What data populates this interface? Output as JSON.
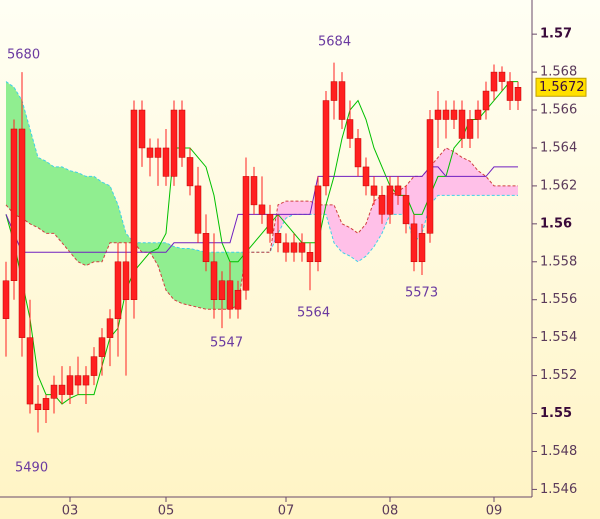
{
  "chart_data": {
    "type": "candlestick",
    "ylim": [
      1.5456,
      1.5718
    ],
    "yticks": [
      1.546,
      1.548,
      1.55,
      1.552,
      1.554,
      1.556,
      1.558,
      1.56,
      1.562,
      1.564,
      1.566,
      1.568,
      1.57
    ],
    "xlim": [
      -0.75,
      65.75
    ],
    "xticks": [
      {
        "value": 8,
        "label": "03"
      },
      {
        "value": 20,
        "label": "05"
      },
      {
        "value": 35,
        "label": "07"
      },
      {
        "value": 48,
        "label": "08"
      },
      {
        "value": 61,
        "label": "09"
      }
    ],
    "candle_color": "#ff2020",
    "last_price": 1.5672,
    "annotations": [
      "5680",
      "5684",
      "5490",
      "5547",
      "5564",
      "5573"
    ],
    "ohlc": [
      [
        1.555,
        1.558,
        1.553,
        1.557
      ],
      [
        1.557,
        1.5655,
        1.556,
        1.565
      ],
      [
        1.565,
        1.568,
        1.553,
        1.554
      ],
      [
        1.554,
        1.556,
        1.55,
        1.5505
      ],
      [
        1.5505,
        1.5515,
        1.549,
        1.5502
      ],
      [
        1.5502,
        1.551,
        1.5495,
        1.5508
      ],
      [
        1.5508,
        1.552,
        1.55,
        1.5515
      ],
      [
        1.5515,
        1.5525,
        1.5505,
        1.551
      ],
      [
        1.551,
        1.5525,
        1.5505,
        1.552
      ],
      [
        1.552,
        1.553,
        1.551,
        1.5515
      ],
      [
        1.5515,
        1.5525,
        1.5505,
        1.552
      ],
      [
        1.552,
        1.5535,
        1.5515,
        1.553
      ],
      [
        1.553,
        1.5545,
        1.552,
        1.554
      ],
      [
        1.554,
        1.5555,
        1.5525,
        1.555
      ],
      [
        1.555,
        1.559,
        1.553,
        1.558
      ],
      [
        1.558,
        1.559,
        1.552,
        1.556
      ],
      [
        1.556,
        1.5665,
        1.555,
        1.566
      ],
      [
        1.566,
        1.5665,
        1.563,
        1.564
      ],
      [
        1.564,
        1.5645,
        1.5625,
        1.5635
      ],
      [
        1.5635,
        1.5645,
        1.562,
        1.564
      ],
      [
        1.564,
        1.565,
        1.562,
        1.5625
      ],
      [
        1.5625,
        1.5665,
        1.562,
        1.566
      ],
      [
        1.566,
        1.5665,
        1.563,
        1.5635
      ],
      [
        1.5635,
        1.564,
        1.5615,
        1.562
      ],
      [
        1.562,
        1.563,
        1.559,
        1.5595
      ],
      [
        1.5595,
        1.5605,
        1.5575,
        1.558
      ],
      [
        1.558,
        1.5595,
        1.555,
        1.556
      ],
      [
        1.556,
        1.5575,
        1.5545,
        1.557
      ],
      [
        1.557,
        1.558,
        1.555,
        1.5555
      ],
      [
        1.5555,
        1.557,
        1.555,
        1.5565
      ],
      [
        1.5565,
        1.5635,
        1.556,
        1.5625
      ],
      [
        1.5625,
        1.563,
        1.5605,
        1.561
      ],
      [
        1.561,
        1.5625,
        1.56,
        1.5605
      ],
      [
        1.5605,
        1.561,
        1.559,
        1.5595
      ],
      [
        1.5595,
        1.5605,
        1.5585,
        1.559
      ],
      [
        1.559,
        1.5595,
        1.558,
        1.5585
      ],
      [
        1.5585,
        1.5595,
        1.558,
        1.559
      ],
      [
        1.559,
        1.5595,
        1.558,
        1.5585
      ],
      [
        1.5585,
        1.559,
        1.5565,
        1.558
      ],
      [
        1.558,
        1.5625,
        1.5575,
        1.562
      ],
      [
        1.562,
        1.567,
        1.5615,
        1.5665
      ],
      [
        1.5665,
        1.5685,
        1.5655,
        1.5675
      ],
      [
        1.5675,
        1.568,
        1.565,
        1.5655
      ],
      [
        1.5655,
        1.5665,
        1.564,
        1.5645
      ],
      [
        1.5645,
        1.565,
        1.5625,
        1.563
      ],
      [
        1.563,
        1.5635,
        1.5615,
        1.562
      ],
      [
        1.562,
        1.5625,
        1.561,
        1.5615
      ],
      [
        1.5615,
        1.562,
        1.56,
        1.5605
      ],
      [
        1.5605,
        1.5625,
        1.56,
        1.562
      ],
      [
        1.562,
        1.5625,
        1.561,
        1.5615
      ],
      [
        1.5615,
        1.562,
        1.5595,
        1.56
      ],
      [
        1.56,
        1.5605,
        1.5575,
        1.558
      ],
      [
        1.558,
        1.56,
        1.5573,
        1.5595
      ],
      [
        1.5595,
        1.566,
        1.559,
        1.5655
      ],
      [
        1.5655,
        1.567,
        1.564,
        1.566
      ],
      [
        1.566,
        1.5665,
        1.5645,
        1.5655
      ],
      [
        1.5655,
        1.5665,
        1.565,
        1.566
      ],
      [
        1.566,
        1.5665,
        1.564,
        1.5645
      ],
      [
        1.5645,
        1.566,
        1.564,
        1.5655
      ],
      [
        1.5655,
        1.5665,
        1.5645,
        1.566
      ],
      [
        1.566,
        1.5675,
        1.5655,
        1.567
      ],
      [
        1.567,
        1.5684,
        1.5665,
        1.568
      ],
      [
        1.568,
        1.5683,
        1.567,
        1.5675
      ],
      [
        1.5675,
        1.568,
        1.566,
        1.5665
      ],
      [
        1.5665,
        1.5675,
        1.566,
        1.5672
      ]
    ],
    "cloud": {
      "up_color": "#90ee90",
      "down_color": "#ffc0e8",
      "a_color": "#40d0e8",
      "b_color": "#d04040",
      "span_a": [
        1.5675,
        1.5672,
        1.5665,
        1.565,
        1.5635,
        1.5633,
        1.563,
        1.563,
        1.5628,
        1.5627,
        1.5625,
        1.5625,
        1.5622,
        1.562,
        1.561,
        1.5595,
        1.559,
        1.559,
        1.559,
        1.559,
        1.559,
        1.5588,
        1.5587,
        1.5587,
        1.5586,
        1.5585,
        1.5585,
        1.5585,
        1.5585,
        1.5585,
        1.5585,
        1.5585,
        1.5585,
        1.5585,
        1.5595,
        1.5603,
        1.5605,
        1.5605,
        1.5605,
        1.5605,
        1.5605,
        1.559,
        1.5585,
        1.5583,
        1.558,
        1.5583,
        1.5588,
        1.5595,
        1.5605,
        1.5605,
        1.5605,
        1.559,
        1.5595,
        1.561,
        1.5615,
        1.5615,
        1.5615,
        1.5615,
        1.5615,
        1.5615,
        1.5615,
        1.5615,
        1.5615,
        1.5615,
        1.5615
      ],
      "span_b": [
        1.561,
        1.5605,
        1.5603,
        1.56,
        1.5598,
        1.5595,
        1.5595,
        1.559,
        1.5585,
        1.558,
        1.5578,
        1.558,
        1.558,
        1.559,
        1.559,
        1.559,
        1.559,
        1.5585,
        1.5585,
        1.5578,
        1.5565,
        1.556,
        1.5558,
        1.5557,
        1.5556,
        1.5555,
        1.5555,
        1.5555,
        1.5555,
        1.5557,
        1.5585,
        1.5585,
        1.5585,
        1.5585,
        1.561,
        1.5612,
        1.5612,
        1.5612,
        1.5612,
        1.561,
        1.561,
        1.561,
        1.56,
        1.5598,
        1.5595,
        1.56,
        1.5612,
        1.5615,
        1.5615,
        1.5617,
        1.562,
        1.5625,
        1.5625,
        1.563,
        1.5635,
        1.564,
        1.5638,
        1.5635,
        1.5633,
        1.5628,
        1.5625,
        1.562,
        1.562,
        1.562,
        1.562
      ]
    },
    "series": [
      {
        "color": "#00c000",
        "values": [
          1.5605,
          1.559,
          1.557,
          1.555,
          1.552,
          1.551,
          1.551,
          1.5505,
          1.5508,
          1.551,
          1.551,
          1.551,
          1.5525,
          1.554,
          1.5545,
          1.5565,
          1.5575,
          1.558,
          1.5585,
          1.5587,
          1.5595,
          1.564,
          1.564,
          1.564,
          1.5635,
          1.563,
          1.5615,
          1.559,
          1.558,
          1.558,
          1.5585,
          1.559,
          1.5595,
          1.56,
          1.5605,
          1.56,
          1.5595,
          1.559,
          1.559,
          1.559,
          1.561,
          1.5625,
          1.5645,
          1.566,
          1.5665,
          1.5655,
          1.564,
          1.563,
          1.562,
          1.5615,
          1.5615,
          1.5605,
          1.5605,
          1.5615,
          1.5625,
          1.5625,
          1.564,
          1.5645,
          1.5655,
          1.5655,
          1.566,
          1.5665,
          1.567,
          1.5675,
          1.5675
        ]
      },
      {
        "color": "#7020c0",
        "values": [
          1.5605,
          1.5595,
          1.5585,
          1.5585,
          1.5585,
          1.5585,
          1.5585,
          1.5585,
          1.5585,
          1.5585,
          1.5585,
          1.5585,
          1.5585,
          1.5585,
          1.5585,
          1.5585,
          1.5585,
          1.5585,
          1.5585,
          1.5585,
          1.5585,
          1.559,
          1.559,
          1.559,
          1.559,
          1.559,
          1.559,
          1.559,
          1.559,
          1.5605,
          1.5605,
          1.5605,
          1.5605,
          1.5605,
          1.5605,
          1.5605,
          1.5605,
          1.5605,
          1.5605,
          1.5625,
          1.5625,
          1.5625,
          1.5625,
          1.5625,
          1.5625,
          1.5625,
          1.5625,
          1.5625,
          1.5625,
          1.5625,
          1.5625,
          1.5625,
          1.5625,
          1.563,
          1.563,
          1.5625,
          1.5625,
          1.5625,
          1.5625,
          1.5625,
          1.5625,
          1.563,
          1.563,
          1.563,
          1.563
        ]
      }
    ]
  }
}
